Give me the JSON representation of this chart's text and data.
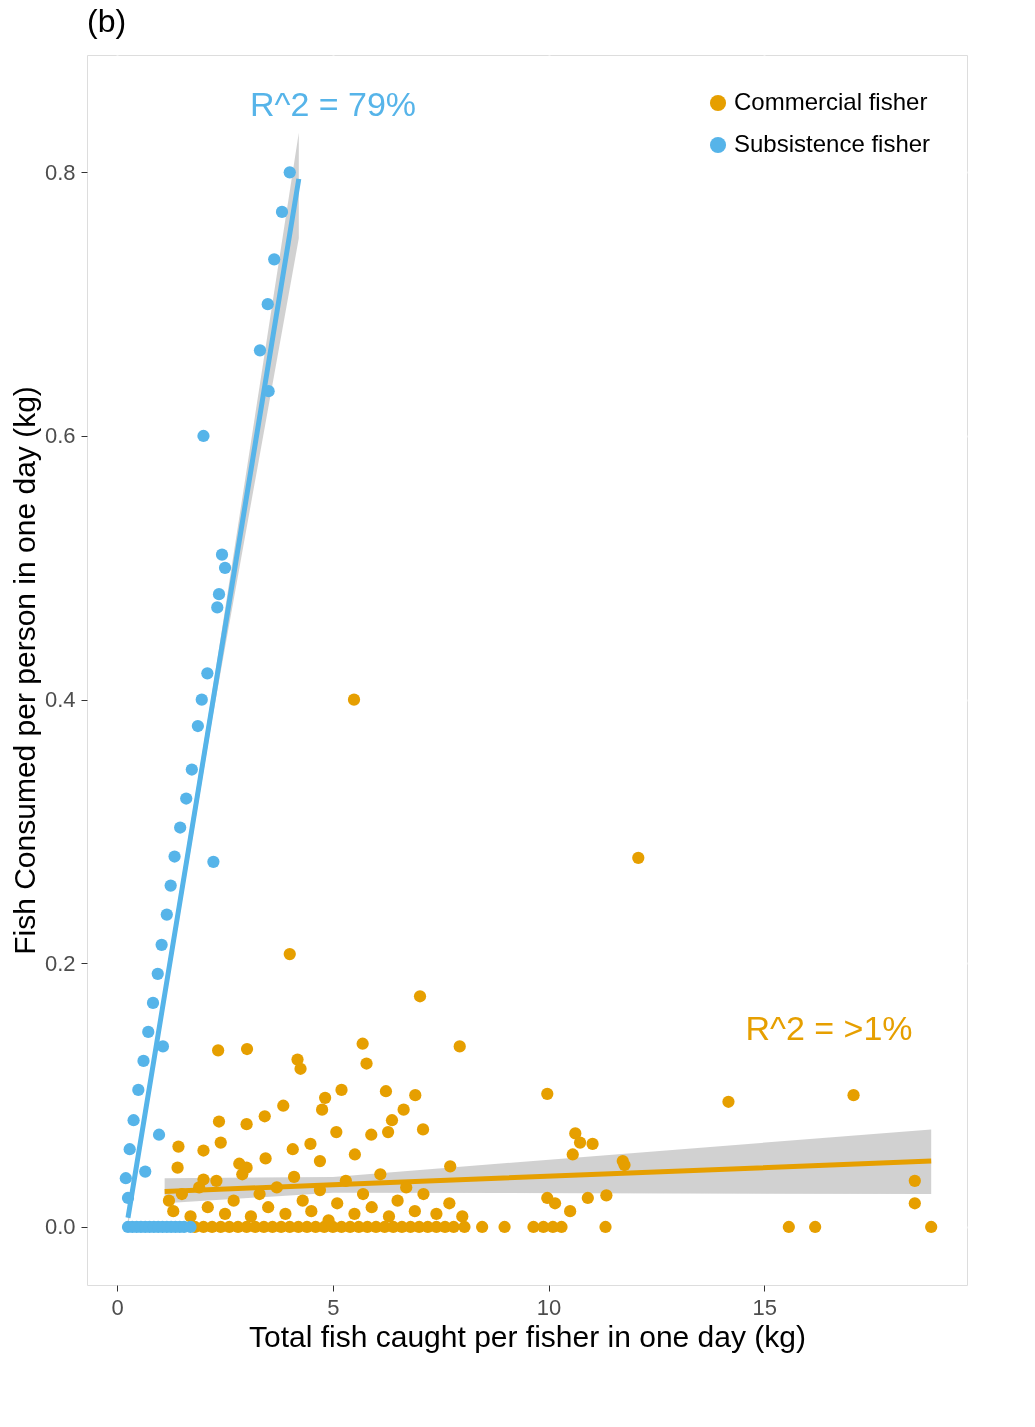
{
  "chart_data": {
    "type": "scatter",
    "title": "(b)",
    "xlabel": "Total fish caught per fisher in one day (kg)",
    "ylabel": "Fish Consumed per person in one day (kg)",
    "xlim": [
      -0.7,
      19.7
    ],
    "ylim": [
      -0.044,
      0.889
    ],
    "xticks": [
      0,
      5,
      10,
      15
    ],
    "yticks": [
      {
        "value": 0,
        "label": "0.0"
      },
      {
        "value": 0.2,
        "label": "0.2"
      },
      {
        "value": 0.4,
        "label": "0.4"
      },
      {
        "value": 0.6,
        "label": "0.6"
      },
      {
        "value": 0.8,
        "label": "0.8"
      }
    ],
    "grid": true,
    "legend": "top right",
    "annotations": [
      "R^2 = >1%",
      "R^2 = 79%"
    ],
    "series": [
      {
        "name": "Commercial fisher",
        "color": "#e69f00",
        "marker": "circle",
        "x": [
          5.49,
          12.08,
          4.0,
          7.02,
          2.34,
          3.01,
          5.69,
          5.78,
          4.18,
          4.25,
          7.94,
          9.97,
          14.17,
          17.07,
          6.91,
          6.23,
          5.2,
          4.82,
          4.75,
          3.85,
          3.42,
          3.0,
          2.36,
          5.08,
          7.09,
          6.37,
          6.64,
          2.4,
          2.0,
          1.42,
          4.07,
          4.48,
          5.89,
          6.28,
          5.51,
          4.7,
          3.44,
          2.83,
          7.72,
          10.62,
          10.73,
          11.02,
          10.56,
          11.72,
          11.76,
          11.34,
          10.91,
          10.15,
          10.5,
          9.97,
          18.49,
          18.49,
          1.8,
          2.0,
          2.2,
          2.4,
          2.6,
          2.8,
          3.0,
          3.2,
          3.4,
          3.6,
          3.8,
          4.0,
          4.2,
          4.4,
          4.6,
          4.8,
          5.0,
          5.2,
          5.4,
          5.6,
          5.8,
          6.0,
          6.2,
          6.4,
          6.6,
          6.8,
          7.0,
          7.2,
          7.4,
          7.6,
          7.8,
          8.05,
          8.46,
          8.98,
          9.65,
          9.88,
          10.1,
          10.3,
          11.32,
          15.57,
          16.18,
          18.87,
          1.2,
          1.3,
          1.5,
          1.7,
          1.9,
          2.1,
          2.3,
          2.5,
          2.7,
          2.9,
          3.1,
          3.3,
          3.5,
          3.7,
          3.9,
          4.1,
          4.3,
          4.5,
          4.7,
          4.9,
          5.1,
          5.3,
          5.5,
          5.7,
          5.9,
          6.1,
          6.3,
          6.5,
          6.7,
          6.9,
          7.1,
          7.4,
          7.7,
          8.0,
          1.4,
          2.0,
          3.0
        ],
        "values": [
          0.4,
          0.28,
          0.207,
          0.175,
          0.134,
          0.135,
          0.139,
          0.124,
          0.127,
          0.12,
          0.137,
          0.101,
          0.095,
          0.1,
          0.1,
          0.103,
          0.104,
          0.098,
          0.089,
          0.092,
          0.084,
          0.078,
          0.08,
          0.072,
          0.074,
          0.081,
          0.089,
          0.064,
          0.058,
          0.061,
          0.059,
          0.063,
          0.07,
          0.072,
          0.055,
          0.05,
          0.052,
          0.048,
          0.046,
          0.071,
          0.064,
          0.063,
          0.055,
          0.05,
          0.047,
          0.024,
          0.022,
          0.018,
          0.012,
          0.022,
          0.018,
          0.035,
          0,
          0,
          0,
          0,
          0,
          0,
          0,
          0,
          0,
          0,
          0,
          0,
          0,
          0,
          0,
          0,
          0,
          0,
          0,
          0,
          0,
          0,
          0,
          0,
          0,
          0,
          0,
          0,
          0,
          0,
          0,
          0,
          0,
          0,
          0,
          0,
          0,
          0,
          0,
          0,
          0,
          0,
          0.02,
          0.012,
          0.025,
          0.008,
          0.03,
          0.015,
          0.035,
          0.01,
          0.02,
          0.04,
          0.008,
          0.025,
          0.015,
          0.03,
          0.01,
          0.038,
          0.02,
          0.012,
          0.028,
          0.005,
          0.018,
          0.035,
          0.01,
          0.025,
          0.015,
          0.04,
          0.008,
          0.02,
          0.03,
          0.012,
          0.025,
          0.01,
          0.018,
          0.008,
          0.045,
          0.036,
          0.045
        ]
      },
      {
        "name": "Subsistence fisher",
        "color": "#56b4e9",
        "marker": "circle",
        "x": [
          4.0,
          3.82,
          3.64,
          3.49,
          3.31,
          3.51,
          2.0,
          2.43,
          2.5,
          2.36,
          2.32,
          2.09,
          1.96,
          1.87,
          2.23,
          1.73,
          1.6,
          1.46,
          1.33,
          1.24,
          1.15,
          1.03,
          0.94,
          0.83,
          0.72,
          0.61,
          1.06,
          0.49,
          0.38,
          0.29,
          0.2,
          0.97,
          0.65,
          0.25,
          0.25,
          0.35,
          0.45,
          0.55,
          0.65,
          0.75,
          0.85,
          0.95,
          1.05,
          1.15,
          1.25,
          1.35,
          1.45,
          1.55,
          1.7
        ],
        "values": [
          0.8,
          0.77,
          0.734,
          0.7,
          0.665,
          0.634,
          0.6,
          0.51,
          0.5,
          0.48,
          0.47,
          0.42,
          0.4,
          0.38,
          0.277,
          0.347,
          0.325,
          0.303,
          0.281,
          0.259,
          0.237,
          0.214,
          0.192,
          0.17,
          0.148,
          0.126,
          0.137,
          0.104,
          0.081,
          0.059,
          0.037,
          0.07,
          0.042,
          0.022,
          0,
          0,
          0,
          0,
          0,
          0,
          0,
          0,
          0,
          0,
          0,
          0,
          0,
          0,
          0
        ]
      },
      {
        "color": "#e69f00",
        "type": "line",
        "x": [
          1.1,
          5.0,
          18.87
        ],
        "values": [
          0.027,
          0.032,
          0.05
        ],
        "lower": [
          0.018,
          0.026,
          0.025
        ],
        "upper": [
          0.037,
          0.038,
          0.074
        ]
      },
      {
        "color": "#56b4e9",
        "type": "line",
        "x": [
          0.25,
          2.2,
          4.21
        ],
        "values": [
          0.007,
          0.395,
          0.795
        ],
        "lower": [
          0.0,
          0.385,
          0.75
        ],
        "upper": [
          0.014,
          0.405,
          0.83
        ]
      }
    ]
  }
}
